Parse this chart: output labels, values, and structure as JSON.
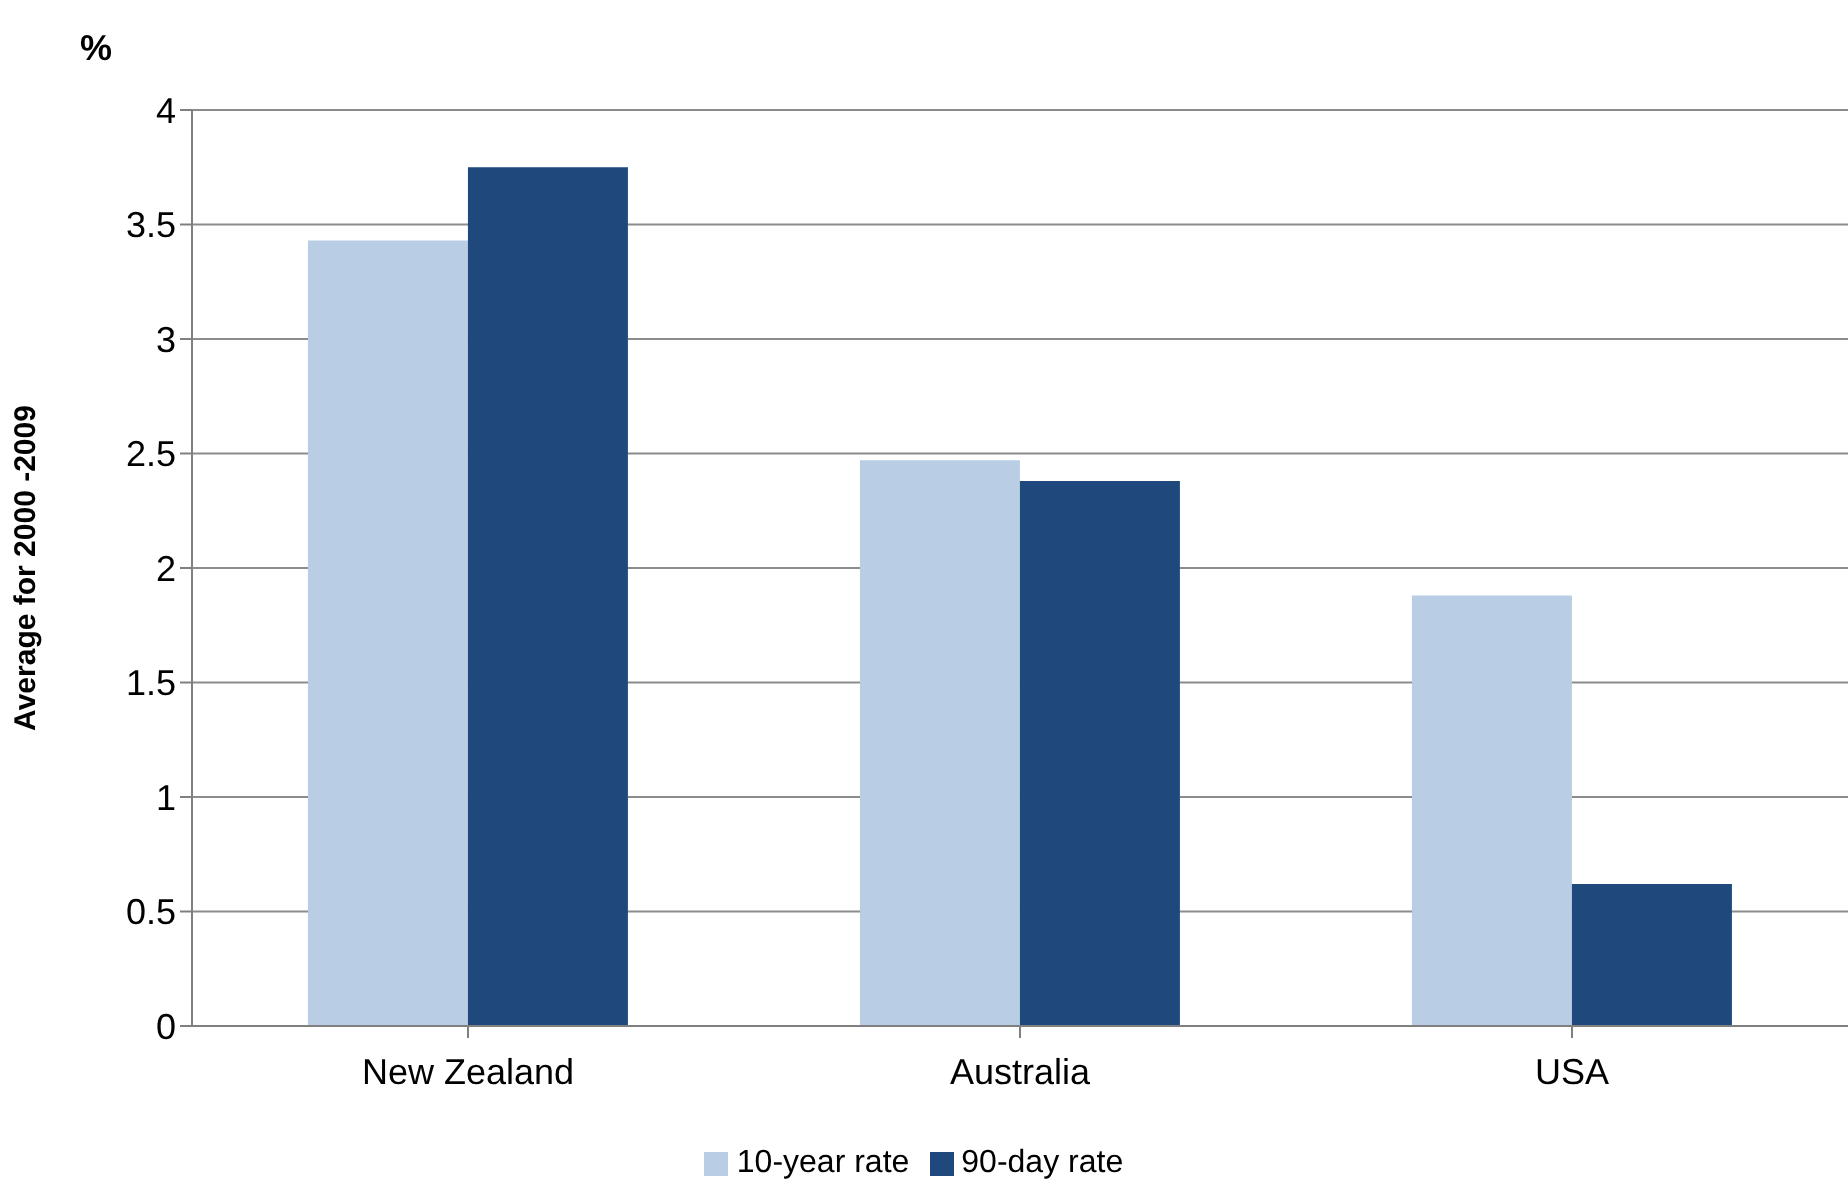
{
  "chart_data": {
    "type": "bar",
    "ylabel": "Average for 2000 -2009",
    "annotations": [
      "%"
    ],
    "categories": [
      "New Zealand",
      "Australia",
      "USA"
    ],
    "series": [
      {
        "name": "10-year rate",
        "color": "#b9cde5",
        "values": [
          3.43,
          2.47,
          1.88
        ]
      },
      {
        "name": "90-day rate",
        "color": "#1f497d",
        "values": [
          3.75,
          2.38,
          0.62
        ]
      }
    ],
    "ylim": [
      0,
      4
    ],
    "yticks": [
      0,
      0.5,
      1,
      1.5,
      2,
      2.5,
      3,
      3.5,
      4
    ],
    "grid": "y",
    "legend": "bottom"
  }
}
